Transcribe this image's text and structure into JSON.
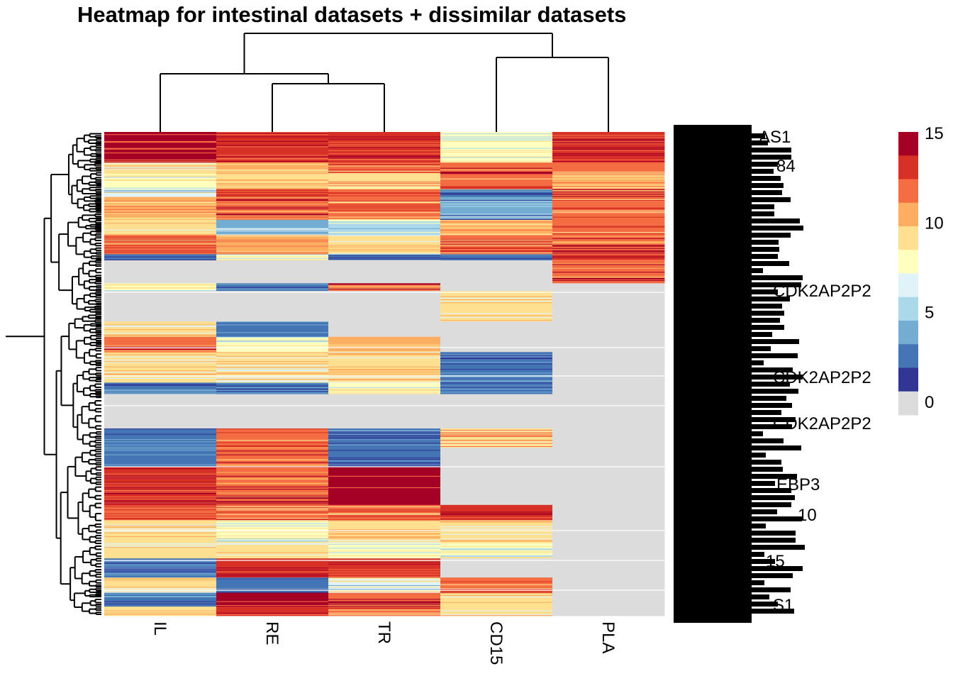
{
  "chart_data": {
    "type": "heatmap",
    "title": "Heatmap for intestinal datasets + dissimilar datasets",
    "columns": [
      "IL",
      "RE",
      "TR",
      "CD15",
      "PLA"
    ],
    "column_dendrogram": "((IL,(RE,TR)),(CD15,PLA))",
    "row_dendrogram": true,
    "row_count_visible": "hundreds (labels overplotted)",
    "legible_row_labels": [
      "AS1",
      "CDK2AP2P2",
      "CDK2AP2P2",
      "CDK2AP2P2",
      "EBP3",
      "10",
      "15",
      "S1",
      "84"
    ],
    "value_range": [
      0,
      15
    ],
    "legend_ticks": [
      0,
      5,
      10,
      15
    ],
    "color_scale": [
      {
        "value": 0,
        "color": "#dcdcdc"
      },
      {
        "value": 1.5,
        "color": "#313695"
      },
      {
        "value": 3,
        "color": "#4575b4"
      },
      {
        "value": 4.5,
        "color": "#74add1"
      },
      {
        "value": 6,
        "color": "#abd9e9"
      },
      {
        "value": 7,
        "color": "#e0f3f8"
      },
      {
        "value": 8,
        "color": "#ffffbf"
      },
      {
        "value": 9.5,
        "color": "#fee090"
      },
      {
        "value": 11,
        "color": "#fdae61"
      },
      {
        "value": 12.5,
        "color": "#f46d43"
      },
      {
        "value": 13.5,
        "color": "#d73027"
      },
      {
        "value": 15,
        "color": "#a50026"
      }
    ],
    "row_blocks": [
      {
        "rows": 40,
        "values": [
          15,
          14,
          14,
          8,
          14
        ]
      },
      {
        "rows": 15,
        "values": [
          9,
          11,
          12,
          13,
          12
        ]
      },
      {
        "rows": 20,
        "values": [
          8,
          9,
          10,
          12,
          11
        ]
      },
      {
        "rows": 10,
        "values": [
          7,
          14,
          12,
          3,
          13
        ]
      },
      {
        "rows": 30,
        "values": [
          11,
          13,
          12,
          4,
          12
        ]
      },
      {
        "rows": 20,
        "values": [
          9,
          5,
          6,
          11,
          12
        ]
      },
      {
        "rows": 25,
        "values": [
          12,
          11,
          9,
          12,
          13
        ]
      },
      {
        "rows": 8,
        "values": [
          3,
          8,
          3,
          3,
          14
        ]
      },
      {
        "rows": 30,
        "values": [
          0,
          0,
          0,
          0,
          13
        ]
      },
      {
        "rows": 10,
        "values": [
          8,
          3,
          13,
          0,
          0
        ]
      },
      {
        "rows": 40,
        "values": [
          0,
          0,
          0,
          9,
          0
        ]
      },
      {
        "rows": 20,
        "values": [
          9,
          3,
          0,
          0,
          0
        ]
      },
      {
        "rows": 20,
        "values": [
          13,
          8,
          11,
          0,
          0
        ]
      },
      {
        "rows": 40,
        "values": [
          9,
          9,
          9,
          3,
          0
        ]
      },
      {
        "rows": 15,
        "values": [
          3,
          3,
          8,
          3,
          0
        ]
      },
      {
        "rows": 45,
        "values": [
          0,
          0,
          0,
          0,
          0
        ]
      },
      {
        "rows": 25,
        "values": [
          3,
          12,
          3,
          10,
          0
        ]
      },
      {
        "rows": 25,
        "values": [
          3,
          13,
          3,
          0,
          0
        ]
      },
      {
        "rows": 50,
        "values": [
          14,
          13,
          15,
          0,
          0
        ]
      },
      {
        "rows": 20,
        "values": [
          12,
          12,
          12,
          14,
          0
        ]
      },
      {
        "rows": 30,
        "values": [
          9,
          8,
          9,
          9,
          0
        ]
      },
      {
        "rows": 20,
        "values": [
          9,
          9,
          8,
          8,
          0
        ]
      },
      {
        "rows": 25,
        "values": [
          3,
          14,
          14,
          0,
          0
        ]
      },
      {
        "rows": 20,
        "values": [
          9,
          3,
          7,
          12,
          0
        ]
      },
      {
        "rows": 18,
        "values": [
          3,
          15,
          13,
          9,
          0
        ]
      },
      {
        "rows": 12,
        "values": [
          9,
          14,
          12,
          9,
          0
        ]
      }
    ]
  }
}
